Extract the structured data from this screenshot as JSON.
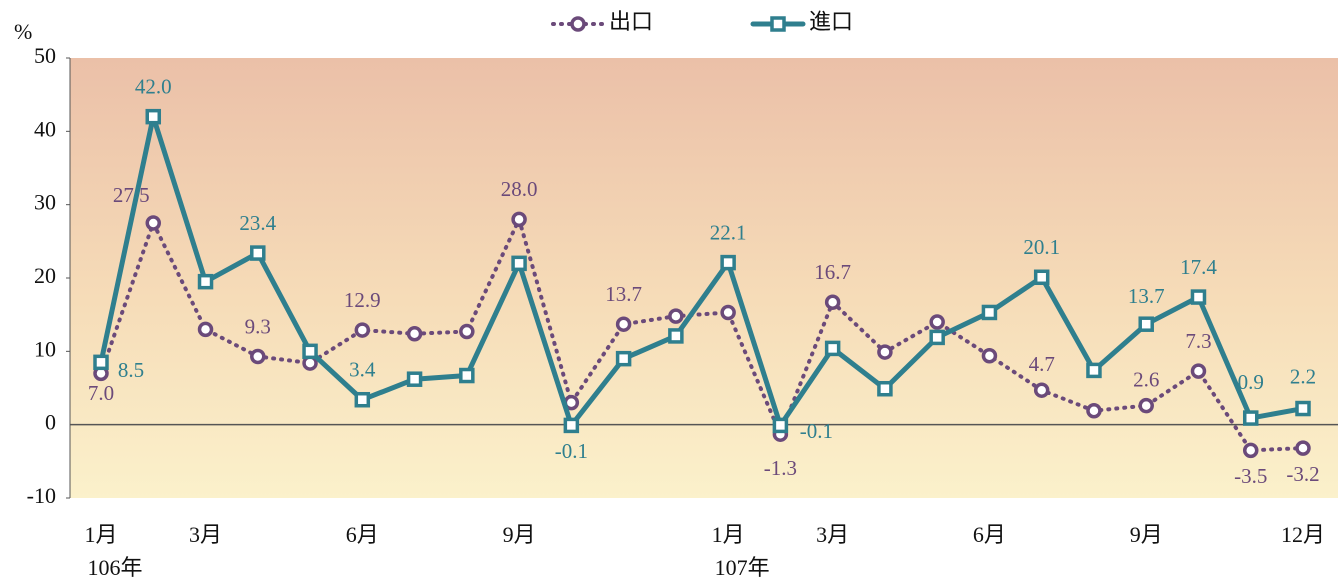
{
  "chart_data": {
    "type": "line",
    "y_axis_label": "%",
    "categories": [
      "1月",
      null,
      "3月",
      null,
      null,
      "6月",
      null,
      null,
      "9月",
      null,
      null,
      null,
      "1月",
      null,
      "3月",
      null,
      null,
      "6月",
      null,
      null,
      "9月",
      null,
      null,
      "12月"
    ],
    "years": [
      "106年",
      null,
      null,
      null,
      null,
      null,
      null,
      null,
      null,
      null,
      null,
      null,
      "107年",
      null,
      null,
      null,
      null,
      null,
      null,
      null,
      null,
      null,
      null,
      null
    ],
    "series": [
      {
        "name": "出口",
        "color": "#6b4a7a",
        "style": "dotted",
        "marker": "circle",
        "values": [
          7.0,
          27.5,
          13.0,
          9.3,
          8.4,
          12.9,
          12.4,
          12.7,
          28.0,
          3.0,
          13.7,
          14.8,
          15.3,
          -1.3,
          16.7,
          9.9,
          14.0,
          9.4,
          4.7,
          1.9,
          2.6,
          7.3,
          -3.5,
          -3.2
        ],
        "value_labels": [
          "7.0",
          "27.5",
          null,
          "9.3",
          null,
          "12.9",
          null,
          null,
          "28.0",
          null,
          "13.7",
          null,
          null,
          "-1.3",
          "16.7",
          null,
          null,
          null,
          "4.7",
          null,
          "2.6",
          "7.3",
          "-3.5",
          "-3.2"
        ]
      },
      {
        "name": "進口",
        "color": "#2f7f8e",
        "style": "solid",
        "marker": "square",
        "values": [
          8.5,
          42.0,
          19.5,
          23.4,
          10.0,
          3.4,
          6.2,
          6.7,
          22.0,
          -0.1,
          9.0,
          12.1,
          22.1,
          -0.1,
          10.4,
          4.9,
          11.9,
          15.3,
          20.1,
          7.4,
          13.7,
          17.4,
          0.9,
          2.2
        ],
        "value_labels": [
          "8.5",
          "42.0",
          null,
          "23.4",
          null,
          "3.4",
          null,
          null,
          null,
          "-0.1",
          null,
          null,
          "22.1",
          "-0.1",
          null,
          null,
          null,
          null,
          "20.1",
          null,
          "13.7",
          "17.4",
          "0.9",
          "2.2"
        ]
      }
    ],
    "ylim": [
      -10,
      50
    ],
    "yticks": [
      -10,
      0,
      10,
      20,
      30,
      40,
      50
    ],
    "legend": "top"
  }
}
